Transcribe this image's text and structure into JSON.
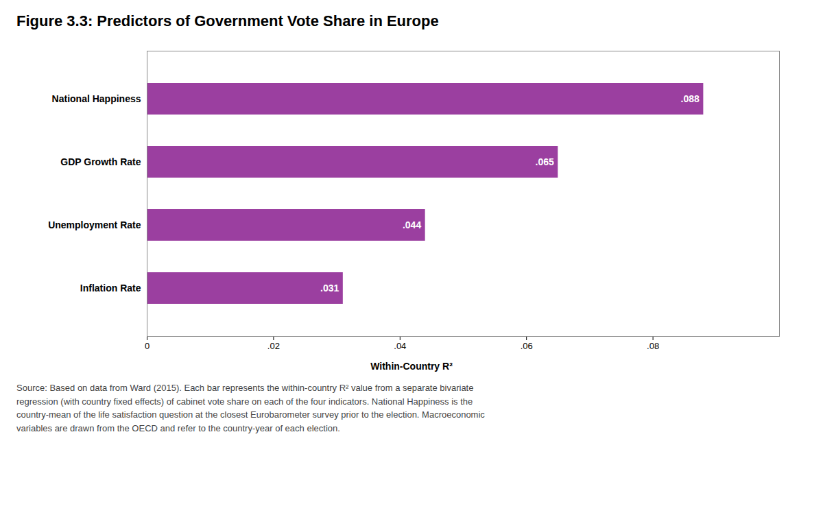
{
  "chart_data": {
    "type": "bar",
    "orientation": "horizontal",
    "title": "Figure 3.3: Predictors of Government Vote Share in Europe",
    "categories": [
      "National Happiness",
      "GDP Growth Rate",
      "Unemployment Rate",
      "Inflation Rate"
    ],
    "values": [
      0.088,
      0.065,
      0.044,
      0.031
    ],
    "value_labels": [
      ".088",
      ".065",
      ".044",
      ".031"
    ],
    "data_labels": true,
    "color": "#9B3FA0",
    "xlabel": "Within-Country R²",
    "xlim": [
      0,
      0.1
    ],
    "xticks": [
      0,
      {
        "value": 0.02,
        "label": ".02"
      },
      {
        "value": 0.04,
        "label": ".04"
      },
      {
        "value": 0.06,
        "label": ".06"
      },
      {
        "value": 0.08,
        "label": ".08"
      }
    ],
    "grid": false,
    "caption": "Source: Based on data from Ward (2015). Each bar represents the within-country R² value from a separate bivariate\nregression (with country fixed effects) of cabinet vote share on each of the four indicators. National Happiness is the\ncountry-mean of the life satisfaction question at the closest Eurobarometer survey prior to the election. Macroeconomic\nvariables are drawn from the OECD and refer to the country-year of each election."
  }
}
